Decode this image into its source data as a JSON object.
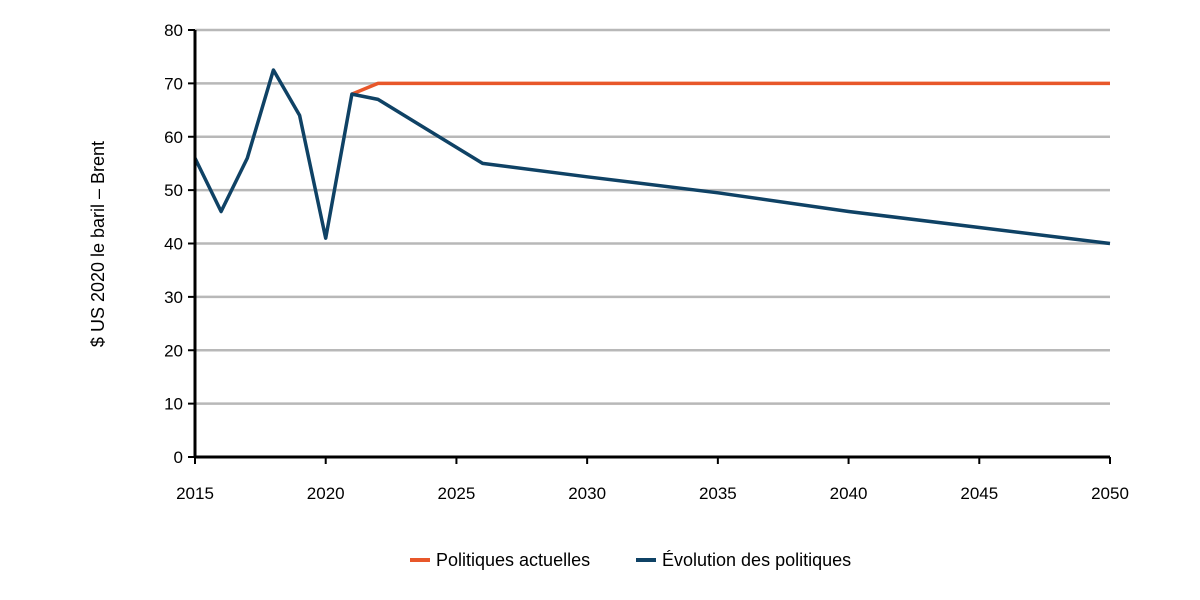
{
  "chart_data": {
    "type": "line",
    "title": "",
    "xlabel": "",
    "ylabel": "$ US 2020 le baril – Brent",
    "xlim": [
      2015,
      2050
    ],
    "ylim": [
      0,
      80
    ],
    "x_ticks": [
      "2015",
      "2020",
      "2025",
      "2030",
      "2035",
      "2040",
      "2045",
      "2050"
    ],
    "y_ticks": [
      "0",
      "10",
      "20",
      "30",
      "40",
      "50",
      "60",
      "70",
      "80"
    ],
    "grid": true,
    "legend_position": "bottom",
    "series": [
      {
        "name": "Politiques actuelles",
        "color": "#e8572a",
        "x": [
          2021,
          2022,
          2023,
          2030,
          2040,
          2050
        ],
        "y": [
          68,
          70,
          70,
          70,
          70,
          70
        ]
      },
      {
        "name": "Évolution des politiques",
        "color": "#0f4265",
        "x": [
          2015,
          2016,
          2017,
          2018,
          2019,
          2020,
          2021,
          2022,
          2026,
          2030,
          2035,
          2040,
          2045,
          2050
        ],
        "y": [
          56,
          46,
          56,
          72.5,
          64,
          41,
          68,
          67,
          55,
          52.5,
          49.5,
          46,
          43,
          40
        ]
      }
    ]
  }
}
